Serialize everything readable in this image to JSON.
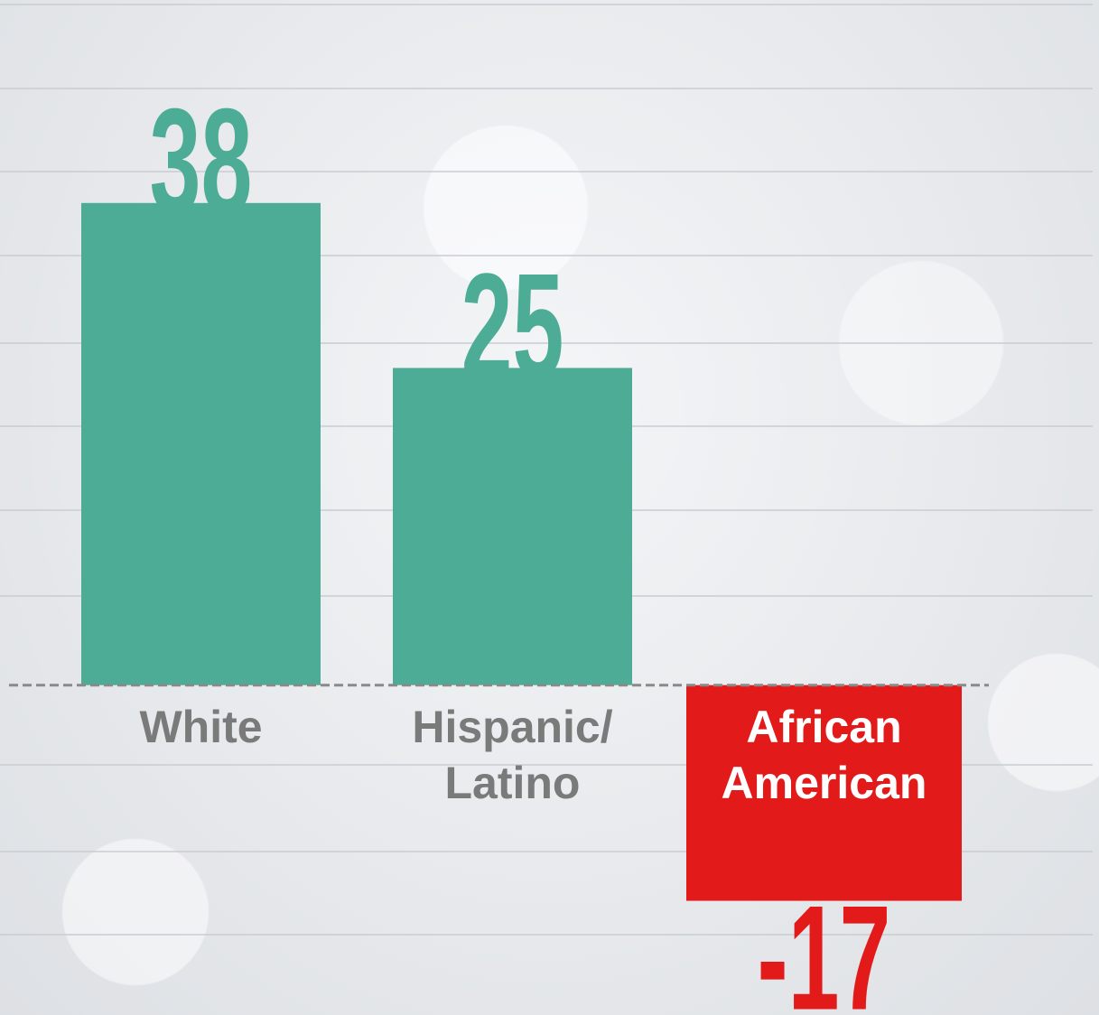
{
  "chart_data": {
    "type": "bar",
    "categories": [
      "White",
      "Hispanic/\nLatino",
      "African American"
    ],
    "values": [
      38,
      25,
      -17
    ],
    "colors": [
      "#4cac96",
      "#4cac96",
      "#e31a1a"
    ],
    "ylim": [
      -26,
      54
    ]
  }
}
